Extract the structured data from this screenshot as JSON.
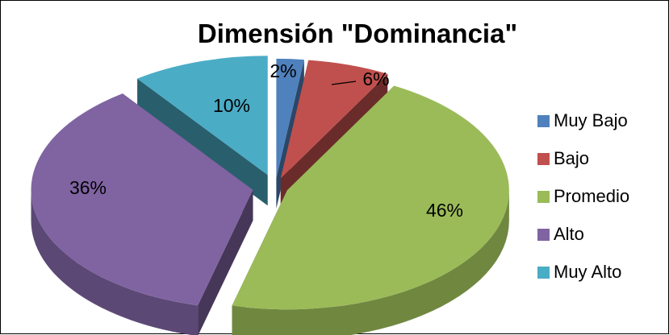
{
  "chart_data": {
    "type": "pie",
    "title": "Dimensión \"Dominancia\"",
    "categories": [
      "Muy Bajo",
      "Bajo",
      "Promedio",
      "Alto",
      "Muy Alto"
    ],
    "values": [
      2,
      6,
      46,
      36,
      10
    ],
    "value_labels": [
      "2%",
      "6%",
      "46%",
      "36%",
      "10%"
    ],
    "colors": [
      "#4F81BD",
      "#C0504D",
      "#9BBB59",
      "#8064A2",
      "#4BACC6"
    ],
    "exploded": true,
    "three_d": true,
    "legend_position": "right"
  }
}
